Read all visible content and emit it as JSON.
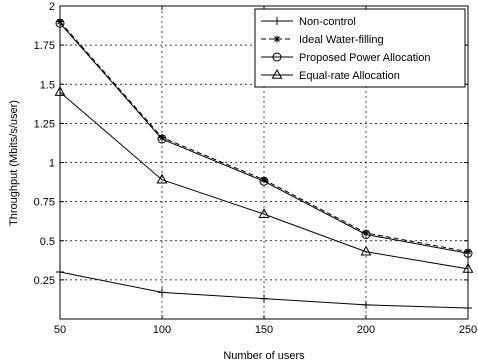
{
  "chart_data": {
    "type": "line",
    "xlabel": "Number of users",
    "ylabel": "Throughput (Mbits/s/user)",
    "x": [
      50,
      100,
      150,
      200,
      250
    ],
    "xlim": [
      50,
      250
    ],
    "ylim": [
      0,
      2
    ],
    "xticks": [
      "50",
      "100",
      "150",
      "200",
      "250"
    ],
    "yticks": [
      "0.25",
      "0.5",
      "0.75",
      "1",
      "1.25",
      "1.5",
      "1.75",
      "2"
    ],
    "grid": true,
    "legend_position": "top-right",
    "series": [
      {
        "name": "Non-control",
        "values": [
          0.3,
          0.17,
          0.13,
          0.09,
          0.07
        ],
        "marker": "plus",
        "dash": "solid"
      },
      {
        "name": "Ideal Water-filling",
        "values": [
          1.9,
          1.16,
          0.89,
          0.55,
          0.43
        ],
        "marker": "star",
        "dash": "dashed"
      },
      {
        "name": "Proposed Power Allocation",
        "values": [
          1.89,
          1.15,
          0.88,
          0.54,
          0.42
        ],
        "marker": "circle",
        "dash": "solid"
      },
      {
        "name": "Equal-rate Allocation",
        "values": [
          1.45,
          0.89,
          0.67,
          0.43,
          0.32
        ],
        "marker": "triangle",
        "dash": "solid"
      }
    ]
  }
}
